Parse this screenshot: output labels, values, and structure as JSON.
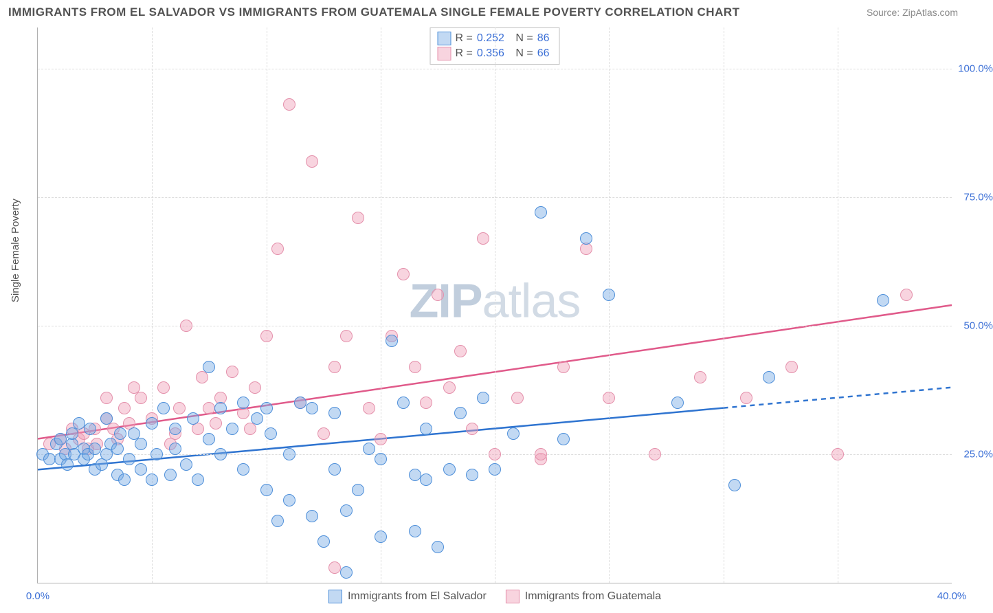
{
  "header": {
    "title": "IMMIGRANTS FROM EL SALVADOR VS IMMIGRANTS FROM GUATEMALA SINGLE FEMALE POVERTY CORRELATION CHART",
    "source": "Source: ZipAtlas.com"
  },
  "axes": {
    "y_title": "Single Female Poverty",
    "x": {
      "min": 0,
      "max": 40,
      "ticks": [
        0,
        40
      ],
      "tick_labels": [
        "0.0%",
        "40.0%"
      ],
      "grid_every": 5
    },
    "y": {
      "min": 0,
      "max": 108,
      "ticks": [
        25,
        50,
        75,
        100
      ],
      "tick_labels": [
        "25.0%",
        "50.0%",
        "75.0%",
        "100.0%"
      ]
    }
  },
  "watermark": {
    "bold": "ZIP",
    "rest": "atlas"
  },
  "colors": {
    "series_a_fill": "rgba(120,170,228,0.45)",
    "series_a_stroke": "#4e8fd9",
    "series_b_fill": "rgba(240,160,185,0.45)",
    "series_b_stroke": "#e490ab",
    "trend_a": "#2f74d0",
    "trend_b": "#e05a8a",
    "axis_label": "#3b6fd6",
    "grid": "#dcdcdc",
    "title_text": "#525252",
    "source_text": "#888888",
    "background": "#ffffff"
  },
  "typography": {
    "title_size": 17,
    "axis_label_size": 15,
    "legend_size": 16,
    "watermark_size": 70
  },
  "legend_top": {
    "rows": [
      {
        "series": "a",
        "r_label": "R =",
        "r_value": "0.252",
        "n_label": "N =",
        "n_value": "86"
      },
      {
        "series": "b",
        "r_label": "R =",
        "r_value": "0.356",
        "n_label": "N =",
        "n_value": "66"
      }
    ]
  },
  "legend_bottom": {
    "items": [
      {
        "series": "a",
        "label": "Immigrants from El Salvador"
      },
      {
        "series": "b",
        "label": "Immigrants from Guatemala"
      }
    ]
  },
  "trend_lines": {
    "a": {
      "x1": 0,
      "y1": 22,
      "x2": 30,
      "y2": 34,
      "x2_dash": 40,
      "y2_dash": 38
    },
    "b": {
      "x1": 0,
      "y1": 28,
      "x2": 40,
      "y2": 54
    }
  },
  "marker": {
    "radius": 8,
    "stroke_width": 1.5
  },
  "series_a": [
    [
      0.2,
      25
    ],
    [
      0.5,
      24
    ],
    [
      0.8,
      27
    ],
    [
      1,
      24
    ],
    [
      1,
      28
    ],
    [
      1.2,
      25
    ],
    [
      1.3,
      23
    ],
    [
      1.5,
      27
    ],
    [
      1.5,
      29
    ],
    [
      1.6,
      25
    ],
    [
      1.8,
      31
    ],
    [
      2,
      26
    ],
    [
      2,
      24
    ],
    [
      2.2,
      25
    ],
    [
      2.3,
      30
    ],
    [
      2.5,
      22
    ],
    [
      2.5,
      26
    ],
    [
      2.8,
      23
    ],
    [
      3,
      32
    ],
    [
      3,
      25
    ],
    [
      3.2,
      27
    ],
    [
      3.5,
      21
    ],
    [
      3.5,
      26
    ],
    [
      3.6,
      29
    ],
    [
      3.8,
      20
    ],
    [
      4,
      24
    ],
    [
      4.2,
      29
    ],
    [
      4.5,
      22
    ],
    [
      4.5,
      27
    ],
    [
      5,
      31
    ],
    [
      5,
      20
    ],
    [
      5.2,
      25
    ],
    [
      5.5,
      34
    ],
    [
      5.8,
      21
    ],
    [
      6,
      30
    ],
    [
      6,
      26
    ],
    [
      6.5,
      23
    ],
    [
      6.8,
      32
    ],
    [
      7,
      20
    ],
    [
      7.5,
      28
    ],
    [
      7.5,
      42
    ],
    [
      8,
      25
    ],
    [
      8,
      34
    ],
    [
      8.5,
      30
    ],
    [
      9,
      22
    ],
    [
      9,
      35
    ],
    [
      9.6,
      32
    ],
    [
      10,
      18
    ],
    [
      10.2,
      29
    ],
    [
      10,
      34
    ],
    [
      10.5,
      12
    ],
    [
      11,
      25
    ],
    [
      11,
      16
    ],
    [
      11.5,
      35
    ],
    [
      12,
      13
    ],
    [
      12,
      34
    ],
    [
      12.5,
      8
    ],
    [
      13,
      22
    ],
    [
      13,
      33
    ],
    [
      13.5,
      14
    ],
    [
      13.5,
      2
    ],
    [
      14,
      18
    ],
    [
      14.5,
      26
    ],
    [
      15,
      9
    ],
    [
      15,
      24
    ],
    [
      15.5,
      47
    ],
    [
      16,
      35
    ],
    [
      16.5,
      21
    ],
    [
      16.5,
      10
    ],
    [
      17,
      30
    ],
    [
      17,
      20
    ],
    [
      17.5,
      7
    ],
    [
      18,
      22
    ],
    [
      18.5,
      33
    ],
    [
      19,
      21
    ],
    [
      19.5,
      36
    ],
    [
      20,
      22
    ],
    [
      20.8,
      29
    ],
    [
      22,
      72
    ],
    [
      23,
      28
    ],
    [
      24,
      67
    ],
    [
      25,
      56
    ],
    [
      28,
      35
    ],
    [
      30.5,
      19
    ],
    [
      32,
      40
    ],
    [
      37,
      55
    ]
  ],
  "series_b": [
    [
      0.5,
      27
    ],
    [
      1,
      28
    ],
    [
      1.2,
      26
    ],
    [
      1.5,
      30
    ],
    [
      1.8,
      28
    ],
    [
      2,
      29
    ],
    [
      2.2,
      26
    ],
    [
      2.5,
      30
    ],
    [
      2.6,
      27
    ],
    [
      3,
      32
    ],
    [
      3,
      36
    ],
    [
      3.3,
      30
    ],
    [
      3.5,
      28
    ],
    [
      3.8,
      34
    ],
    [
      4,
      31
    ],
    [
      4.2,
      38
    ],
    [
      4.5,
      36
    ],
    [
      5,
      32
    ],
    [
      5.5,
      38
    ],
    [
      5.8,
      27
    ],
    [
      6,
      29
    ],
    [
      6.2,
      34
    ],
    [
      6.5,
      50
    ],
    [
      7,
      30
    ],
    [
      7.2,
      40
    ],
    [
      7.5,
      34
    ],
    [
      7.8,
      31
    ],
    [
      8,
      36
    ],
    [
      8.5,
      41
    ],
    [
      9,
      33
    ],
    [
      9.3,
      30
    ],
    [
      9.5,
      38
    ],
    [
      10,
      48
    ],
    [
      10.5,
      65
    ],
    [
      11,
      93
    ],
    [
      11.5,
      35
    ],
    [
      12,
      82
    ],
    [
      12.5,
      29
    ],
    [
      13,
      42
    ],
    [
      13.5,
      48
    ],
    [
      14,
      71
    ],
    [
      14.5,
      34
    ],
    [
      15,
      28
    ],
    [
      15.5,
      48
    ],
    [
      16,
      60
    ],
    [
      16.5,
      42
    ],
    [
      17,
      35
    ],
    [
      17.5,
      56
    ],
    [
      18,
      38
    ],
    [
      18.5,
      45
    ],
    [
      19,
      30
    ],
    [
      19.5,
      67
    ],
    [
      20,
      25
    ],
    [
      21,
      36
    ],
    [
      22,
      24
    ],
    [
      23,
      42
    ],
    [
      24,
      65
    ],
    [
      25,
      36
    ],
    [
      27,
      25
    ],
    [
      29,
      40
    ],
    [
      31,
      36
    ],
    [
      33,
      42
    ],
    [
      35,
      25
    ],
    [
      38,
      56
    ],
    [
      13,
      3
    ],
    [
      22,
      25
    ]
  ]
}
